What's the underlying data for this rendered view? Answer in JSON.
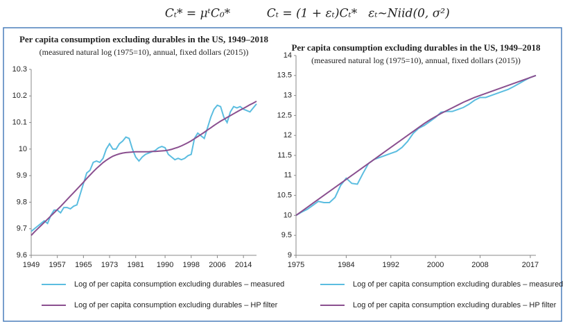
{
  "equations": [
    "Cₜ* = μᵗC₀*",
    "Cₜ = (1 + εₜ)Cₜ*",
    "εₜ~Niid(0, σ²)"
  ],
  "chart_data": [
    {
      "type": "line",
      "title": "Per capita consumption excluding durables in the US, 1949–2018",
      "subtitle": "(measured natural log (1975=10), annual, fixed dollars (2015))",
      "x": [
        1949,
        1950,
        1951,
        1952,
        1953,
        1954,
        1955,
        1956,
        1957,
        1958,
        1959,
        1960,
        1961,
        1962,
        1963,
        1964,
        1965,
        1966,
        1967,
        1968,
        1969,
        1970,
        1971,
        1972,
        1973,
        1974,
        1975,
        1976,
        1977,
        1978,
        1979,
        1980,
        1981,
        1982,
        1983,
        1984,
        1985,
        1986,
        1987,
        1988,
        1989,
        1990,
        1991,
        1992,
        1993,
        1994,
        1995,
        1996,
        1997,
        1998,
        1999,
        2000,
        2001,
        2002,
        2003,
        2004,
        2005,
        2006,
        2007,
        2008,
        2009,
        2010,
        2011,
        2012,
        2013,
        2014,
        2015,
        2016,
        2017,
        2018
      ],
      "series": [
        {
          "name": "Log of per capita consumption excluding durables – measured",
          "color": "#5bbde0",
          "values": [
            9.69,
            9.7,
            9.71,
            9.72,
            9.73,
            9.72,
            9.75,
            9.77,
            9.77,
            9.76,
            9.78,
            9.78,
            9.775,
            9.785,
            9.79,
            9.83,
            9.87,
            9.91,
            9.92,
            9.95,
            9.955,
            9.95,
            9.965,
            10.0,
            10.02,
            10.0,
            10.0,
            10.02,
            10.03,
            10.045,
            10.04,
            10.0,
            9.97,
            9.955,
            9.97,
            9.98,
            9.985,
            9.99,
            9.995,
            10.005,
            10.01,
            10.005,
            9.98,
            9.97,
            9.96,
            9.965,
            9.96,
            9.965,
            9.975,
            9.98,
            10.04,
            10.06,
            10.05,
            10.04,
            10.08,
            10.12,
            10.15,
            10.165,
            10.16,
            10.12,
            10.1,
            10.14,
            10.16,
            10.155,
            10.16,
            10.15,
            10.145,
            10.14,
            10.155,
            10.17
          ]
        },
        {
          "name": "Log of per capita consumption excluding durables – HP filter",
          "color": "#8a4f8f",
          "values": [
            9.675,
            9.688,
            9.7,
            9.712,
            9.724,
            9.736,
            9.748,
            9.76,
            9.772,
            9.784,
            9.797,
            9.81,
            9.823,
            9.836,
            9.849,
            9.862,
            9.875,
            9.889,
            9.902,
            9.915,
            9.927,
            9.938,
            9.949,
            9.958,
            9.966,
            9.973,
            9.978,
            9.982,
            9.985,
            9.987,
            9.988,
            9.989,
            9.99,
            9.99,
            9.99,
            9.99,
            9.99,
            9.991,
            9.991,
            9.992,
            9.993,
            9.994,
            9.996,
            9.999,
            10.003,
            10.007,
            10.012,
            10.018,
            10.024,
            10.031,
            10.039,
            10.047,
            10.055,
            10.063,
            10.072,
            10.08,
            10.089,
            10.097,
            10.105,
            10.112,
            10.119,
            10.126,
            10.133,
            10.14,
            10.147,
            10.153,
            10.16,
            10.167,
            10.173,
            10.18
          ]
        }
      ],
      "xlim": [
        1949,
        2018
      ],
      "xticks": [
        1949,
        1957,
        1965,
        1973,
        1981,
        1990,
        1998,
        2006,
        2014
      ],
      "ylim": [
        9.6,
        10.3
      ],
      "yticks": [
        9.6,
        9.7,
        9.8,
        9.9,
        10,
        10.1,
        10.2,
        10.3
      ],
      "grid": false
    },
    {
      "type": "line",
      "title": "Per capita consumption excluding durables in the US, 1949–2018",
      "subtitle": "(measured natural log (1975=10), annual, fixed dollars (2015))",
      "x": [
        1975,
        1976,
        1977,
        1978,
        1979,
        1980,
        1981,
        1982,
        1983,
        1984,
        1985,
        1986,
        1987,
        1988,
        1989,
        1990,
        1991,
        1992,
        1993,
        1994,
        1995,
        1996,
        1997,
        1998,
        1999,
        2000,
        2001,
        2002,
        2003,
        2004,
        2005,
        2006,
        2007,
        2008,
        2009,
        2010,
        2011,
        2012,
        2013,
        2014,
        2015,
        2016,
        2017,
        2018
      ],
      "series": [
        {
          "name": "Log of per capita consumption excluding durables – measured",
          "color": "#5bbde0",
          "values": [
            10.0,
            10.08,
            10.15,
            10.25,
            10.35,
            10.32,
            10.32,
            10.45,
            10.75,
            10.93,
            10.8,
            10.78,
            11.05,
            11.3,
            11.4,
            11.45,
            11.5,
            11.55,
            11.6,
            11.7,
            11.85,
            12.05,
            12.18,
            12.25,
            12.35,
            12.45,
            12.58,
            12.6,
            12.6,
            12.65,
            12.7,
            12.78,
            12.88,
            12.95,
            12.95,
            13.0,
            13.05,
            13.1,
            13.15,
            13.22,
            13.3,
            13.38,
            13.45,
            13.5
          ]
        },
        {
          "name": "Log of per capita consumption excluding durables – HP filter",
          "color": "#8a4f8f",
          "values": [
            10.0,
            10.1,
            10.2,
            10.3,
            10.4,
            10.5,
            10.6,
            10.7,
            10.8,
            10.9,
            11.0,
            11.1,
            11.2,
            11.3,
            11.4,
            11.5,
            11.6,
            11.7,
            11.8,
            11.9,
            12.0,
            12.1,
            12.2,
            12.3,
            12.39,
            12.47,
            12.55,
            12.62,
            12.69,
            12.76,
            12.83,
            12.89,
            12.95,
            13.0,
            13.05,
            13.1,
            13.15,
            13.2,
            13.25,
            13.3,
            13.35,
            13.4,
            13.45,
            13.5
          ]
        }
      ],
      "xlim": [
        1975,
        2018
      ],
      "xticks": [
        1975,
        1984,
        1992,
        2000,
        2008,
        2017
      ],
      "ylim": [
        9,
        14
      ],
      "yticks": [
        9,
        9.5,
        10,
        10.5,
        11,
        11.5,
        12,
        12.5,
        13,
        13.5,
        14
      ],
      "grid": false
    }
  ]
}
